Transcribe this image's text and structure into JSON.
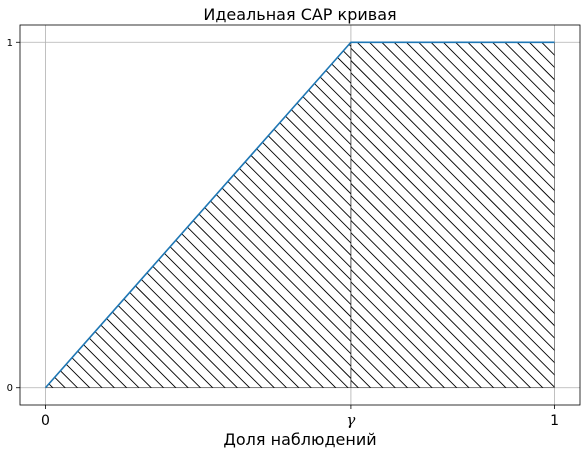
{
  "chart_data": {
    "type": "line",
    "title": "Идеальная CAP кривая",
    "xlabel": "Доля наблюдений",
    "ylabel": "",
    "x_ticks": [
      {
        "value": 0,
        "label": "0"
      },
      {
        "value": 0.6,
        "label": "γ"
      },
      {
        "value": 1,
        "label": "1"
      }
    ],
    "y_ticks": [
      {
        "value": 0,
        "label": "0"
      },
      {
        "value": 1,
        "label": "1"
      }
    ],
    "xlim": [
      -0.05,
      1.05
    ],
    "ylim": [
      -0.05,
      1.05
    ],
    "grid": true,
    "series": [
      {
        "x": [
          0,
          0.6,
          1
        ],
        "y": [
          0,
          1,
          1
        ],
        "color": "#1f77b4"
      }
    ],
    "hatched_regions": [
      {
        "x_from": 0,
        "x_to": 0.6,
        "pattern": "backslash",
        "color": "#000000"
      },
      {
        "x_from": 0.6,
        "x_to": 1,
        "pattern": "backslash",
        "color": "#000000"
      }
    ]
  }
}
